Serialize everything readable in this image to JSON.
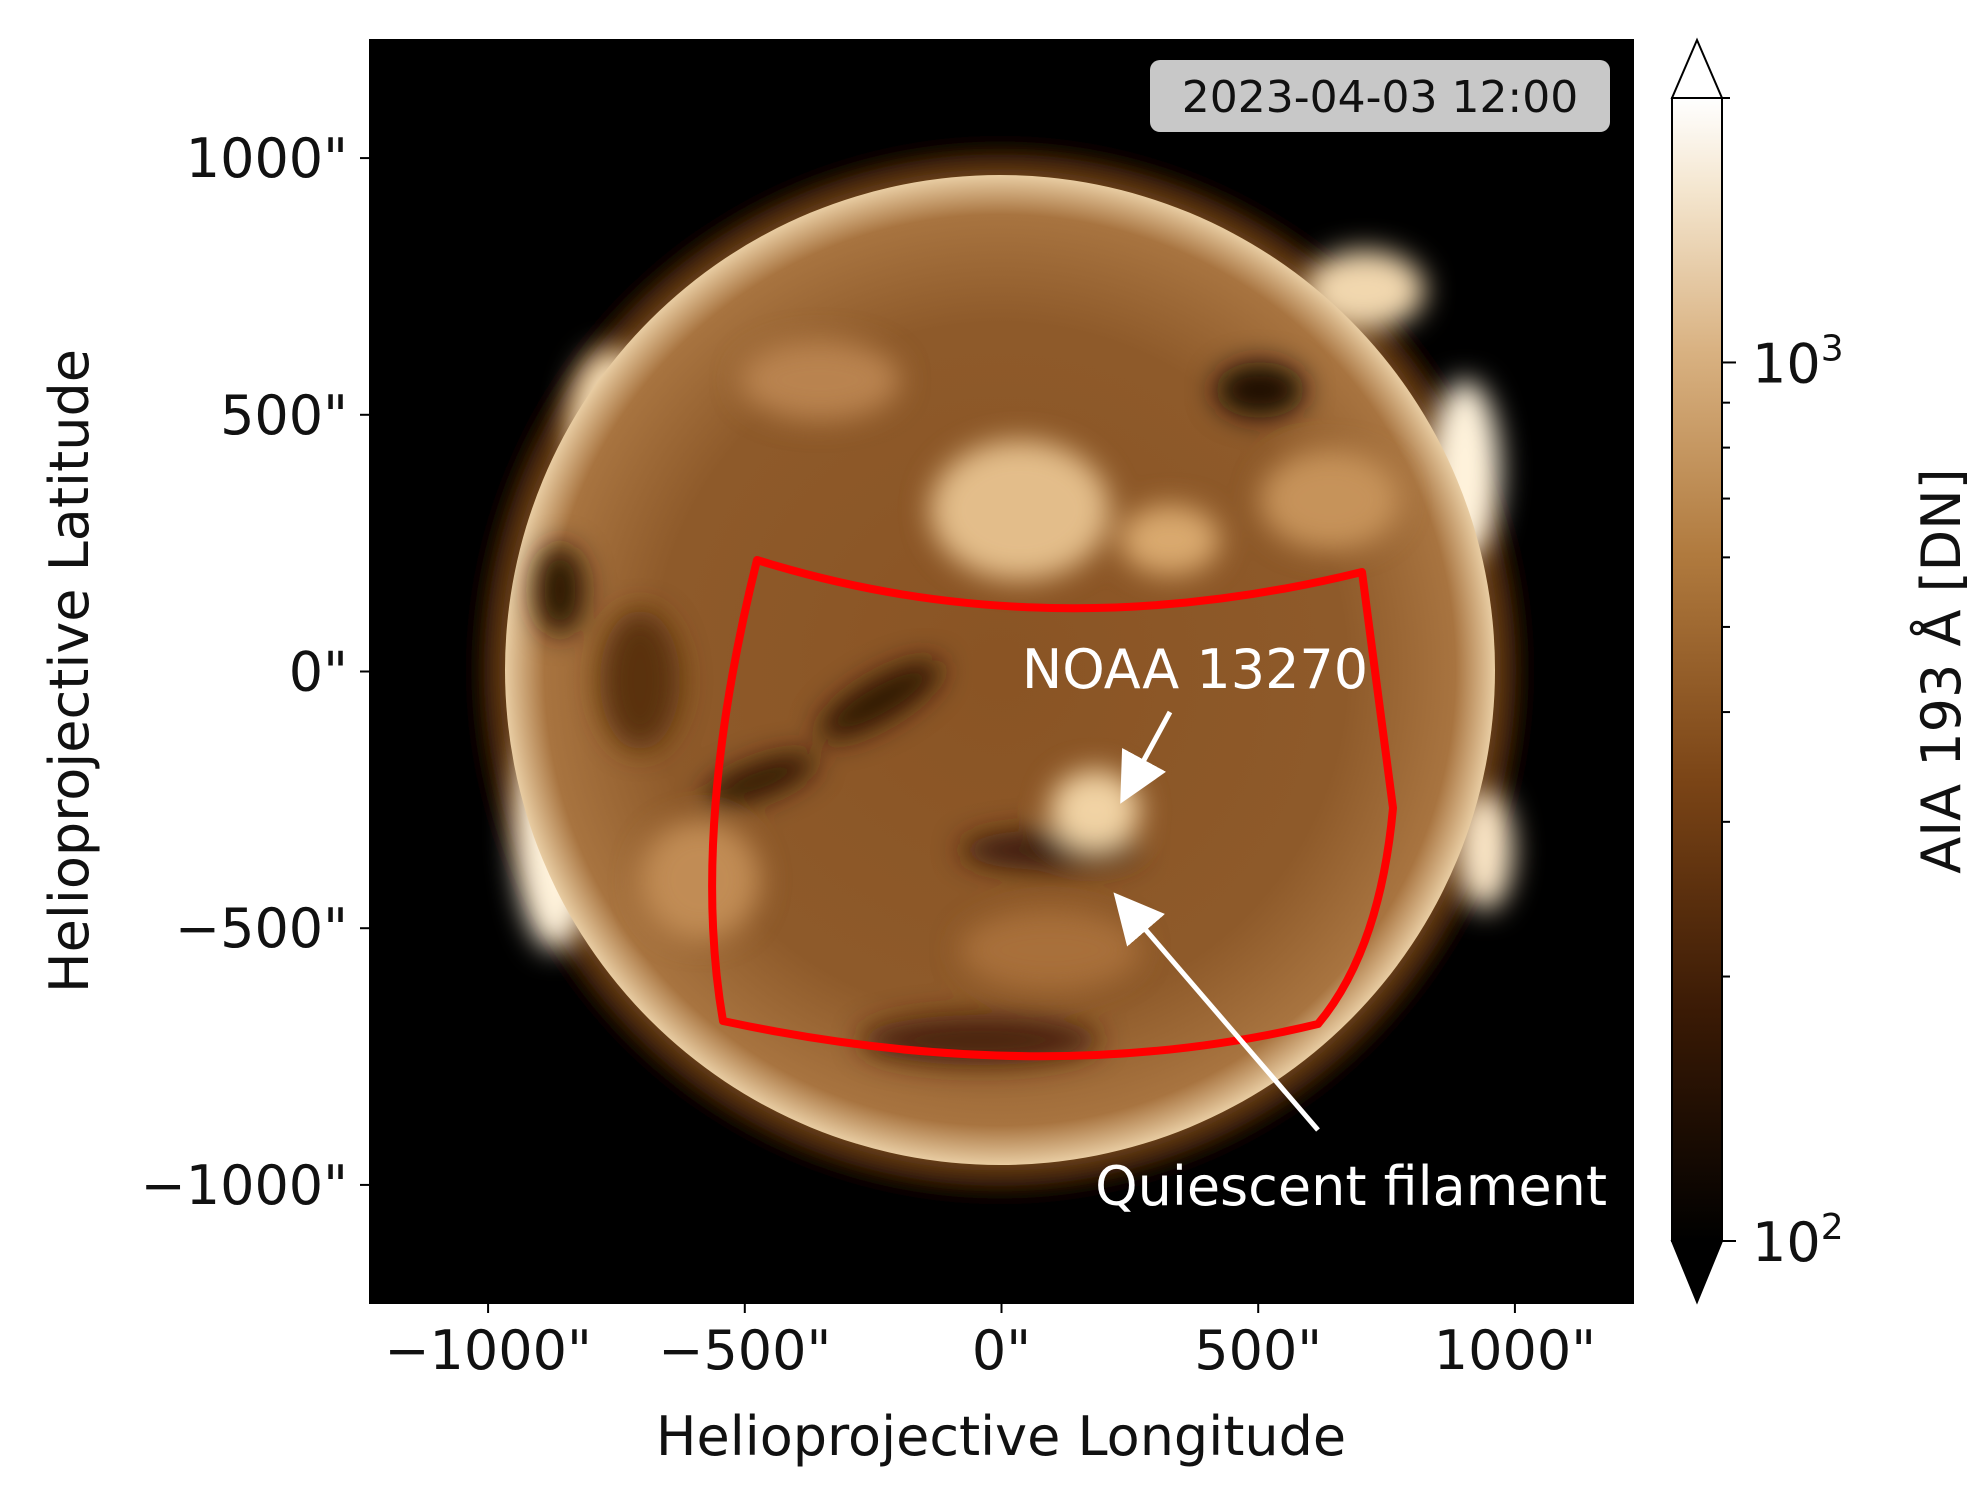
{
  "timestamp": "2023-04-03 12:00",
  "x_axis": {
    "title": "Helioprojective Longitude",
    "ticks": [
      {
        "value": -1000,
        "label": "−1000\""
      },
      {
        "value": -500,
        "label": "−500\""
      },
      {
        "value": 0,
        "label": "0\""
      },
      {
        "value": 500,
        "label": "500\""
      },
      {
        "value": 1000,
        "label": "1000\""
      }
    ],
    "range": [
      -1230,
      1230
    ]
  },
  "y_axis": {
    "title": "Helioprojective Latitude",
    "ticks": [
      {
        "value": 1000,
        "label": "1000\""
      },
      {
        "value": 500,
        "label": "500\""
      },
      {
        "value": 0,
        "label": "0\""
      },
      {
        "value": -500,
        "label": "−500\""
      },
      {
        "value": -1000,
        "label": "−1000\""
      }
    ],
    "range": [
      -1230,
      1230
    ]
  },
  "colorbar": {
    "label": "AIA 193 Å [DN]",
    "scale": "log",
    "range": [
      100,
      2000
    ],
    "tick_major": [
      {
        "value": 1000,
        "base": "10",
        "exp": "3"
      },
      {
        "value": 100,
        "base": "10",
        "exp": "2"
      }
    ],
    "colors": [
      "#000000",
      "#3a1a05",
      "#7a4416",
      "#b07a3e",
      "#d9b282",
      "#f4e6cf",
      "#ffffff"
    ]
  },
  "annotations": {
    "active_region": {
      "label": "NOAA 13270",
      "arrow_tip": [
        210,
        -250
      ]
    },
    "filament": {
      "label": "Quiescent filament",
      "arrow_tip": [
        230,
        -440
      ]
    }
  },
  "box": {
    "color": "#ff0000"
  },
  "sun": {
    "color": "#c08848"
  }
}
